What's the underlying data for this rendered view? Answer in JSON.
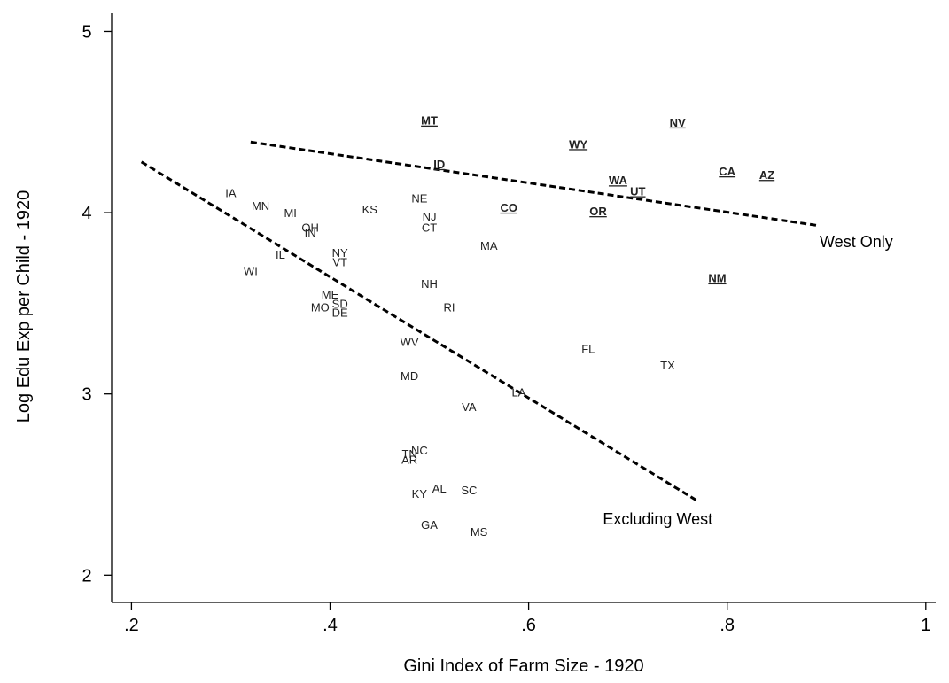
{
  "chart_data": {
    "type": "scatter",
    "xlabel": "Gini Index of Farm Size - 1920",
    "ylabel": "Log Edu Exp per Child - 1920",
    "xlim": [
      0.18,
      1.01
    ],
    "ylim": [
      1.85,
      5.1
    ],
    "xticks": [
      0.2,
      0.4,
      0.6,
      0.8,
      1.0
    ],
    "xtick_labels": [
      ".2",
      ".4",
      ".6",
      ".8",
      "1"
    ],
    "yticks": [
      2,
      3,
      4,
      5
    ],
    "ytick_labels": [
      "2",
      "3",
      "4",
      "5"
    ],
    "grid": false,
    "points": [
      {
        "label": "MT",
        "x": 0.5,
        "y": 4.51,
        "west": true
      },
      {
        "label": "NV",
        "x": 0.75,
        "y": 4.5,
        "west": true
      },
      {
        "label": "WY",
        "x": 0.65,
        "y": 4.38,
        "west": true
      },
      {
        "label": "ID",
        "x": 0.51,
        "y": 4.27,
        "west": true
      },
      {
        "label": "CA",
        "x": 0.8,
        "y": 4.23,
        "west": true
      },
      {
        "label": "AZ",
        "x": 0.84,
        "y": 4.21,
        "west": true
      },
      {
        "label": "WA",
        "x": 0.69,
        "y": 4.18,
        "west": true
      },
      {
        "label": "UT",
        "x": 0.71,
        "y": 4.12,
        "west": true
      },
      {
        "label": "CO",
        "x": 0.58,
        "y": 4.03,
        "west": true
      },
      {
        "label": "OR",
        "x": 0.67,
        "y": 4.01,
        "west": true
      },
      {
        "label": "NM",
        "x": 0.79,
        "y": 3.64,
        "west": true
      },
      {
        "label": "IA",
        "x": 0.3,
        "y": 4.11,
        "west": false
      },
      {
        "label": "MN",
        "x": 0.33,
        "y": 4.04,
        "west": false
      },
      {
        "label": "MI",
        "x": 0.36,
        "y": 4.0,
        "west": false
      },
      {
        "label": "KS",
        "x": 0.44,
        "y": 4.02,
        "west": false
      },
      {
        "label": "NE",
        "x": 0.49,
        "y": 4.08,
        "west": false
      },
      {
        "label": "NJ",
        "x": 0.5,
        "y": 3.98,
        "west": false
      },
      {
        "label": "CT",
        "x": 0.5,
        "y": 3.92,
        "west": false
      },
      {
        "label": "OH",
        "x": 0.38,
        "y": 3.92,
        "west": false
      },
      {
        "label": "IN",
        "x": 0.38,
        "y": 3.89,
        "west": false
      },
      {
        "label": "MA",
        "x": 0.56,
        "y": 3.82,
        "west": false
      },
      {
        "label": "NY",
        "x": 0.41,
        "y": 3.78,
        "west": false
      },
      {
        "label": "IL",
        "x": 0.35,
        "y": 3.77,
        "west": false
      },
      {
        "label": "VT",
        "x": 0.41,
        "y": 3.73,
        "west": false
      },
      {
        "label": "WI",
        "x": 0.32,
        "y": 3.68,
        "west": false
      },
      {
        "label": "NH",
        "x": 0.5,
        "y": 3.61,
        "west": false
      },
      {
        "label": "ME",
        "x": 0.4,
        "y": 3.55,
        "west": false
      },
      {
        "label": "MO",
        "x": 0.39,
        "y": 3.48,
        "west": false
      },
      {
        "label": "SD",
        "x": 0.41,
        "y": 3.5,
        "west": false
      },
      {
        "label": "DE",
        "x": 0.41,
        "y": 3.45,
        "west": false
      },
      {
        "label": "RI",
        "x": 0.52,
        "y": 3.48,
        "west": false
      },
      {
        "label": "WV",
        "x": 0.48,
        "y": 3.29,
        "west": false
      },
      {
        "label": "FL",
        "x": 0.66,
        "y": 3.25,
        "west": false
      },
      {
        "label": "TX",
        "x": 0.74,
        "y": 3.16,
        "west": false
      },
      {
        "label": "MD",
        "x": 0.48,
        "y": 3.1,
        "west": false
      },
      {
        "label": "LA",
        "x": 0.59,
        "y": 3.01,
        "west": false
      },
      {
        "label": "VA",
        "x": 0.54,
        "y": 2.93,
        "west": false
      },
      {
        "label": "NC",
        "x": 0.49,
        "y": 2.69,
        "west": false
      },
      {
        "label": "TN",
        "x": 0.48,
        "y": 2.67,
        "west": false
      },
      {
        "label": "AR",
        "x": 0.48,
        "y": 2.64,
        "west": false
      },
      {
        "label": "AL",
        "x": 0.51,
        "y": 2.48,
        "west": false
      },
      {
        "label": "SC",
        "x": 0.54,
        "y": 2.47,
        "west": false
      },
      {
        "label": "KY",
        "x": 0.49,
        "y": 2.45,
        "west": false
      },
      {
        "label": "GA",
        "x": 0.5,
        "y": 2.28,
        "west": false
      },
      {
        "label": "MS",
        "x": 0.55,
        "y": 2.24,
        "west": false
      }
    ],
    "fit_lines": [
      {
        "name": "West Only",
        "x": [
          0.32,
          0.89
        ],
        "y": [
          4.39,
          3.93
        ],
        "label_x": 0.93,
        "label_y": 3.81
      },
      {
        "name": "Excluding West",
        "x": [
          0.21,
          0.77
        ],
        "y": [
          4.28,
          2.41
        ],
        "label_x": 0.73,
        "label_y": 2.28
      }
    ]
  }
}
